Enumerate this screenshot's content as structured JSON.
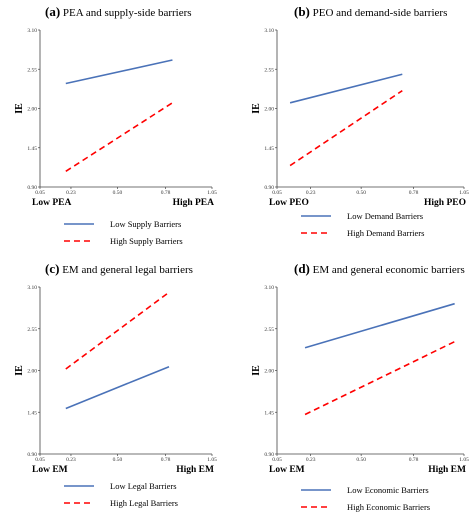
{
  "chart_data": [
    {
      "type": "line",
      "panel": "(a)",
      "title": "PEA and supply-side barriers",
      "ylabel": "IE",
      "xlim": [
        0.05,
        1.05
      ],
      "ylim": [
        0.9,
        3.1
      ],
      "x_ticks": [
        "0.05",
        "0.23",
        "0.50",
        "0.78",
        "1.05"
      ],
      "y_ticks": [
        "0.90",
        "1.45",
        "2.00",
        "2.55",
        "3.10"
      ],
      "x_low_label": "Low PEA",
      "x_high_label": "High PEA",
      "grid": false,
      "legend_position": "bottom",
      "series": [
        {
          "name": "Low Supply Barriers",
          "x": [
            0.2,
            0.82
          ],
          "y": [
            2.35,
            2.68
          ],
          "color": "#4a72b8",
          "dash": "solid"
        },
        {
          "name": "High Supply Barriers",
          "x": [
            0.2,
            0.82
          ],
          "y": [
            1.12,
            2.08
          ],
          "color": "#ff0000",
          "dash": "dashed"
        }
      ]
    },
    {
      "type": "line",
      "panel": "(b)",
      "title": "PEO and demand-side barriers",
      "ylabel": "IE",
      "xlim": [
        0.05,
        1.05
      ],
      "ylim": [
        0.9,
        3.1
      ],
      "x_ticks": [
        "0.05",
        "0.23",
        "0.50",
        "0.78",
        "1.05"
      ],
      "y_ticks": [
        "0.90",
        "1.45",
        "2.00",
        "2.55",
        "3.10"
      ],
      "x_low_label": "Low PEO",
      "x_high_label": "High PEO",
      "grid": false,
      "legend_position": "bottom",
      "series": [
        {
          "name": "Low Demand Barriers",
          "x": [
            0.12,
            0.72
          ],
          "y": [
            2.08,
            2.48
          ],
          "color": "#4a72b8",
          "dash": "solid"
        },
        {
          "name": "High Demand Barriers",
          "x": [
            0.12,
            0.72
          ],
          "y": [
            1.2,
            2.25
          ],
          "color": "#ff0000",
          "dash": "dashed"
        }
      ]
    },
    {
      "type": "line",
      "panel": "(c)",
      "title": "EM and general legal barriers",
      "ylabel": "IE",
      "xlim": [
        0.05,
        1.05
      ],
      "ylim": [
        0.9,
        3.1
      ],
      "x_ticks": [
        "0.05",
        "0.23",
        "0.50",
        "0.78",
        "1.05"
      ],
      "y_ticks": [
        "0.90",
        "1.45",
        "2.00",
        "2.55",
        "3.10"
      ],
      "x_low_label": "Low EM",
      "x_high_label": "High EM",
      "grid": false,
      "legend_position": "bottom",
      "series": [
        {
          "name": "Low Legal Barriers",
          "x": [
            0.2,
            0.8
          ],
          "y": [
            1.5,
            2.05
          ],
          "color": "#4a72b8",
          "dash": "solid"
        },
        {
          "name": "High Legal Barriers",
          "x": [
            0.2,
            0.8
          ],
          "y": [
            2.02,
            3.03
          ],
          "color": "#ff0000",
          "dash": "dashed"
        }
      ]
    },
    {
      "type": "line",
      "panel": "(d)",
      "title": "EM and general economic barriers",
      "ylabel": "IE",
      "xlim": [
        0.05,
        1.05
      ],
      "ylim": [
        0.9,
        3.1
      ],
      "x_ticks": [
        "0.05",
        "0.23",
        "0.50",
        "0.78",
        "1.05"
      ],
      "y_ticks": [
        "0.90",
        "1.45",
        "2.00",
        "2.55",
        "3.10"
      ],
      "x_low_label": "Low EM",
      "x_high_label": "High EM",
      "grid": false,
      "legend_position": "bottom",
      "series": [
        {
          "name": "Low Economic Barriers",
          "x": [
            0.2,
            1.0
          ],
          "y": [
            2.3,
            2.88
          ],
          "color": "#4a72b8",
          "dash": "solid"
        },
        {
          "name": "High Economic Barriers",
          "x": [
            0.2,
            1.0
          ],
          "y": [
            1.42,
            2.38
          ],
          "color": "#ff0000",
          "dash": "dashed"
        }
      ]
    }
  ]
}
